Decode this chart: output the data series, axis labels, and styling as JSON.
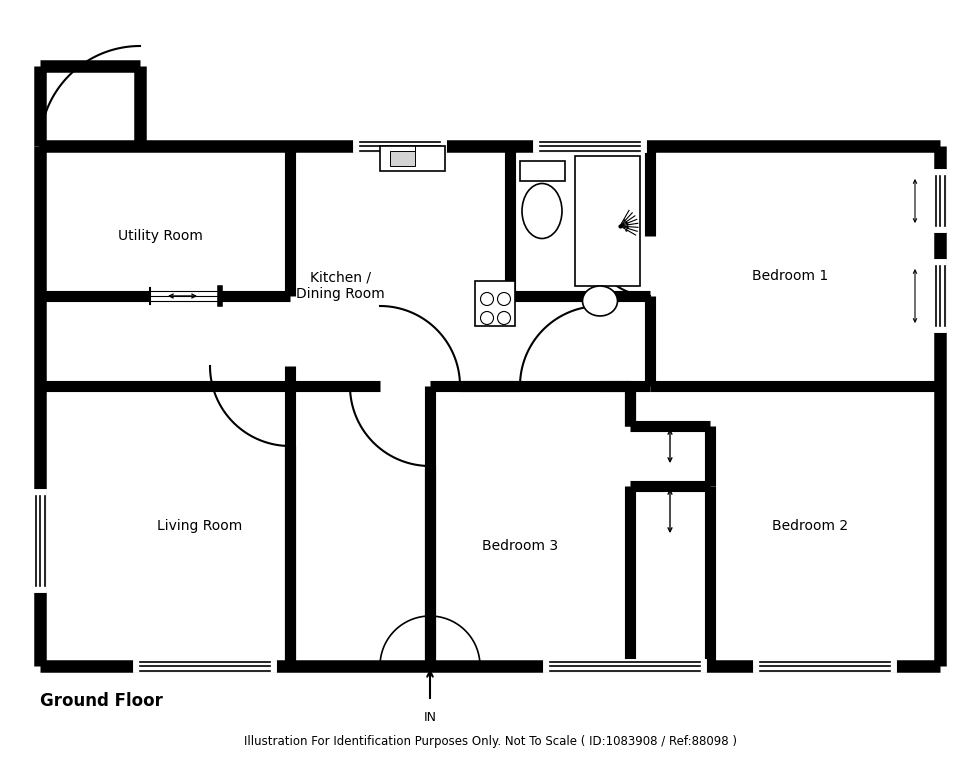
{
  "title": "Ground Floor",
  "footer": "Illustration For Identification Purposes Only. Not To Scale ( ID:1083908 / Ref:88098 )",
  "bg_color": "#ffffff",
  "rooms": {
    "utility": "Utility Room",
    "kitchen": "Kitchen /\nDining Room",
    "living": "Living Room",
    "bed1": "Bedroom 1",
    "bed2": "Bedroom 2",
    "bed3": "Bedroom 3"
  },
  "lw_outer": 9,
  "lw_inner": 8,
  "lw_fixture": 1.2,
  "lw_door": 1.5,
  "lw_window": 1.2,
  "label_fs": 10,
  "title_fs": 12,
  "footer_fs": 8.5
}
